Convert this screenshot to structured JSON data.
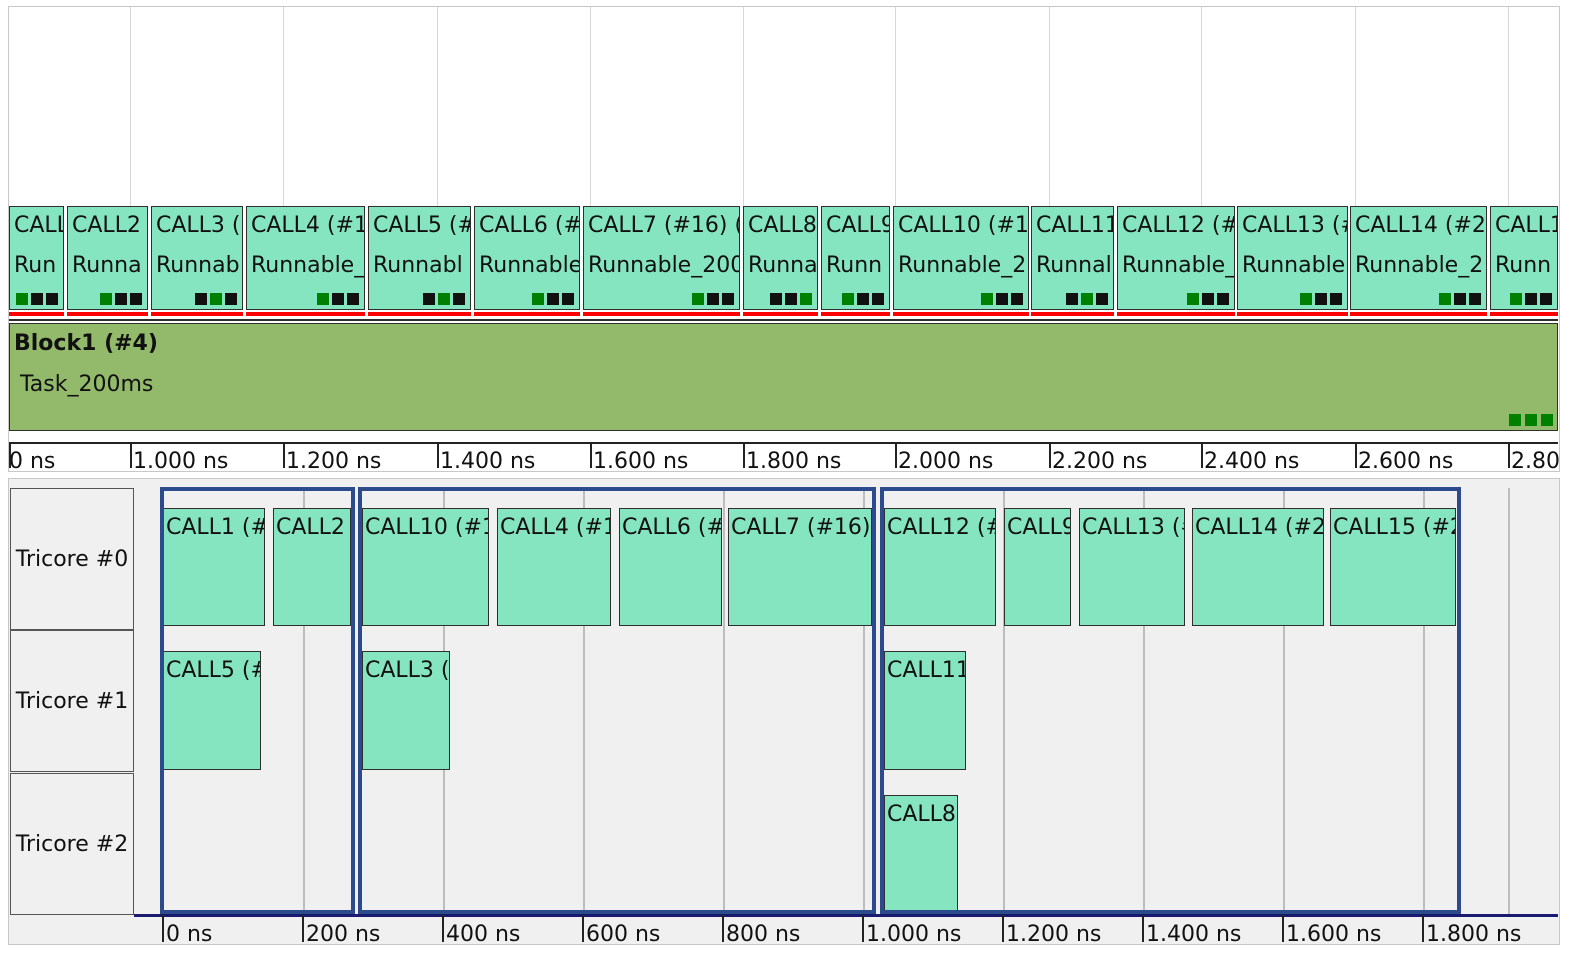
{
  "top_panel": {
    "calls": [
      {
        "id": "call-1",
        "label": "CALL1",
        "runnable": "Run",
        "sq": [
          "g",
          "k",
          "k"
        ]
      },
      {
        "id": "call-2",
        "label": "CALL2",
        "runnable": "Runna",
        "sq": [
          "g",
          "k",
          "k"
        ]
      },
      {
        "id": "call-3",
        "label": "CALL3 (#",
        "runnable": "Runnab",
        "sq": [
          "k",
          "g",
          "k"
        ]
      },
      {
        "id": "call-4",
        "label": "CALL4 (#13",
        "runnable": "Runnable_",
        "sq": [
          "g",
          "k",
          "k"
        ]
      },
      {
        "id": "call-5",
        "label": "CALL5 (#",
        "runnable": "Runnabl",
        "sq": [
          "k",
          "g",
          "k"
        ]
      },
      {
        "id": "call-6",
        "label": "CALL6 (#1",
        "runnable": "Runnable",
        "sq": [
          "g",
          "k",
          "k"
        ]
      },
      {
        "id": "call-7",
        "label": "CALL7 (#16)  (",
        "runnable": "Runnable_200",
        "sq": [
          "g",
          "k",
          "k"
        ]
      },
      {
        "id": "call-8",
        "label": "CALL8",
        "runnable": "Runna",
        "sq": [
          "k",
          "k",
          "g"
        ]
      },
      {
        "id": "call-9",
        "label": "CALL9",
        "runnable": "Runn",
        "sq": [
          "g",
          "k",
          "k"
        ]
      },
      {
        "id": "call-10",
        "label": "CALL10 (#19",
        "runnable": "Runnable_2",
        "sq": [
          "g",
          "k",
          "k"
        ]
      },
      {
        "id": "call-11",
        "label": "CALL11",
        "runnable": "Runnal",
        "sq": [
          "k",
          "g",
          "k"
        ]
      },
      {
        "id": "call-12",
        "label": "CALL12 (#",
        "runnable": "Runnable_",
        "sq": [
          "g",
          "k",
          "k"
        ]
      },
      {
        "id": "call-13",
        "label": "CALL13 (#",
        "runnable": "Runnable",
        "sq": [
          "g",
          "k",
          "k"
        ]
      },
      {
        "id": "call-14",
        "label": "CALL14 (#23",
        "runnable": "Runnable_2",
        "sq": [
          "g",
          "k",
          "k"
        ]
      },
      {
        "id": "call-15",
        "label": "CALL1",
        "runnable": "Runn",
        "sq": [
          "g",
          "k",
          "k"
        ]
      }
    ],
    "block": {
      "title": "Block1 (#4)",
      "task": "Task_200ms"
    },
    "axis_ticks": [
      "0 ns",
      "1.000 ns",
      "1.200 ns",
      "1.400 ns",
      "1.600 ns",
      "1.800 ns",
      "2.000 ns",
      "2.200 ns",
      "2.400 ns",
      "2.600 ns",
      "2.80"
    ]
  },
  "bottom_panel": {
    "cores": [
      {
        "id": "tricore-0",
        "label": "Tricore #0"
      },
      {
        "id": "tricore-1",
        "label": "Tricore #1"
      },
      {
        "id": "tricore-2",
        "label": "Tricore #2"
      }
    ],
    "calls": [
      {
        "label": "CALL1 (#"
      },
      {
        "label": "CALL2"
      },
      {
        "label": "CALL10 (#1"
      },
      {
        "label": "CALL4 (#1"
      },
      {
        "label": "CALL6 (#"
      },
      {
        "label": "CALL7 (#16)"
      },
      {
        "label": "CALL12 (#"
      },
      {
        "label": "CALL9"
      },
      {
        "label": "CALL13 (#"
      },
      {
        "label": "CALL14 (#23"
      },
      {
        "label": "CALL15 (#2"
      },
      {
        "label": "CALL5 (#"
      },
      {
        "label": "CALL3 (#"
      },
      {
        "label": "CALL11"
      },
      {
        "label": "CALL8"
      }
    ],
    "axis_ticks": [
      "0 ns",
      "200 ns",
      "400 ns",
      "600 ns",
      "800 ns",
      "1.000 ns",
      "1.200 ns",
      "1.400 ns",
      "1.600 ns",
      "1.800 ns"
    ]
  },
  "colors": {
    "call_fill": "#86e5c1",
    "block_fill": "#93b96b",
    "frame": "#2b4b8c",
    "marker_red": "#ff0000",
    "square_green": "#008000",
    "square_black": "#111111"
  }
}
